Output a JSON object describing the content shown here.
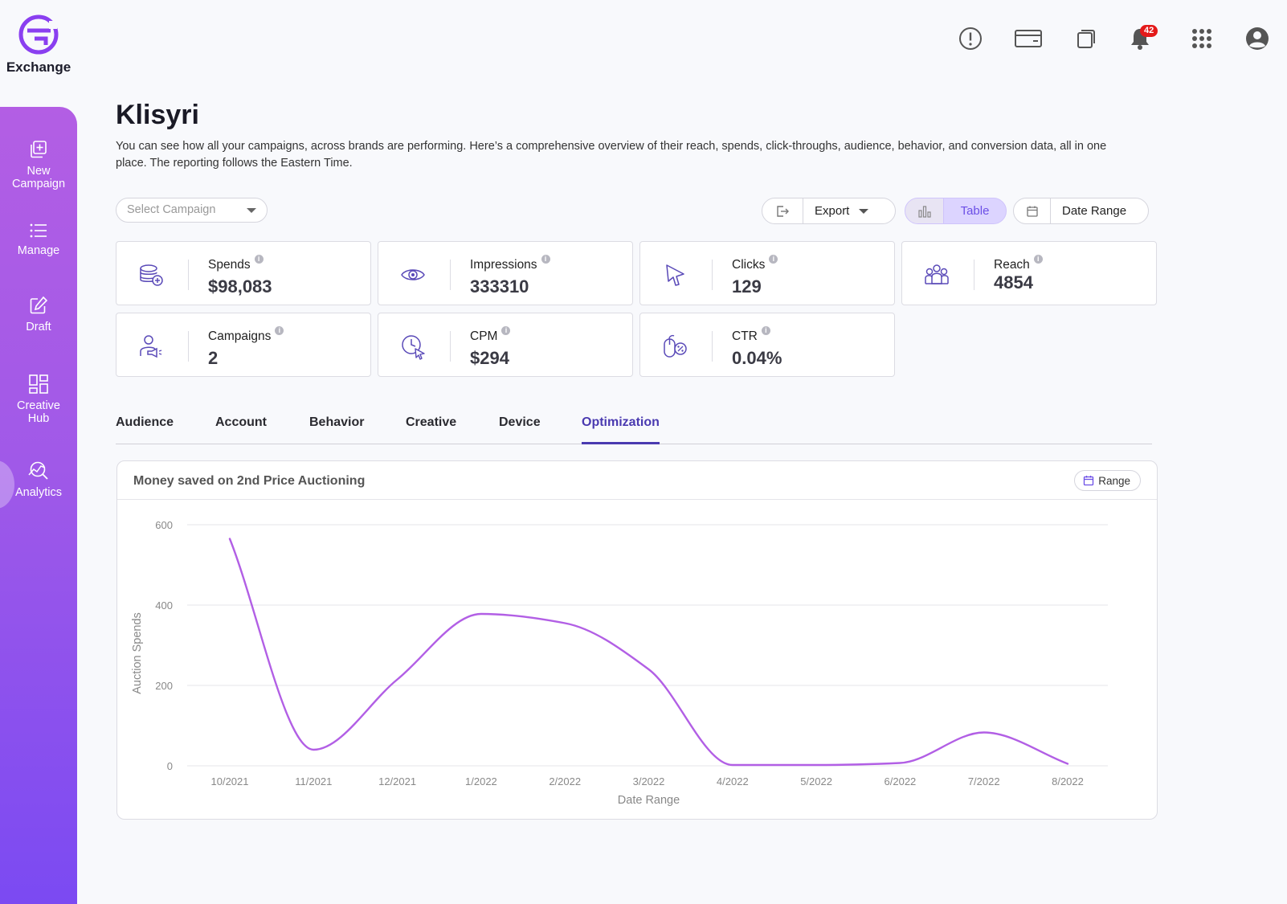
{
  "brand": {
    "name": "Exchange",
    "color": "#8a3ff0"
  },
  "sidebar": {
    "items": [
      {
        "label_line1": "New",
        "label_line2": "Campaign",
        "icon": "plus-square-icon"
      },
      {
        "label_line1": "Manage",
        "label_line2": "",
        "icon": "list-icon"
      },
      {
        "label_line1": "Draft",
        "label_line2": "",
        "icon": "edit-icon"
      },
      {
        "label_line1": "Creative",
        "label_line2": "Hub",
        "icon": "grid-icon"
      },
      {
        "label_line1": "Analytics",
        "label_line2": "",
        "icon": "analytics-icon",
        "active": true
      }
    ]
  },
  "topbar": {
    "notification_count": "42"
  },
  "page": {
    "title": "Klisyri",
    "description": "You can see how all your campaigns, across brands are performing. Here’s a comprehensive overview of their reach, spends, click-throughs, audience, behavior, and conversion data, all in one place. The reporting follows the Eastern Time."
  },
  "controls": {
    "select_placeholder": "Select Campaign",
    "export_label": "Export",
    "table_label": "Table",
    "date_range_label": "Date Range"
  },
  "stats": [
    {
      "label": "Spends",
      "value": "$98,083",
      "icon": "coins-icon"
    },
    {
      "label": "Impressions",
      "value": "333310",
      "icon": "eye-icon"
    },
    {
      "label": "Clicks",
      "value": "129",
      "icon": "cursor-icon"
    },
    {
      "label": "Reach",
      "value": "4854",
      "icon": "people-icon"
    },
    {
      "label": "Campaigns",
      "value": "2",
      "icon": "campaign-user-icon"
    },
    {
      "label": "CPM",
      "value": "$294",
      "icon": "clock-cursor-icon"
    },
    {
      "label": "CTR",
      "value": "0.04%",
      "icon": "mouse-percent-icon"
    }
  ],
  "tabs": [
    "Audience",
    "Account",
    "Behavior",
    "Creative",
    "Device",
    "Optimization"
  ],
  "active_tab": "Optimization",
  "chart_card": {
    "title": "Money saved on 2nd Price Auctioning",
    "range_label": "Range"
  },
  "chart_data": {
    "type": "line",
    "x": [
      "10/2021",
      "11/2021",
      "12/2021",
      "1/2022",
      "2/2022",
      "3/2022",
      "4/2022",
      "5/2022",
      "6/2022",
      "7/2022",
      "8/2022"
    ],
    "series": [
      {
        "values": [
          565,
          40,
          215,
          378,
          355,
          240,
          2,
          2,
          7,
          83,
          5
        ]
      }
    ],
    "xlabel": "Date Range",
    "ylabel": "Auction Spends",
    "ylim": [
      0,
      600
    ],
    "yticks": [
      0,
      200,
      400,
      600
    ],
    "grid": true,
    "line_color": "#b25fe5"
  }
}
